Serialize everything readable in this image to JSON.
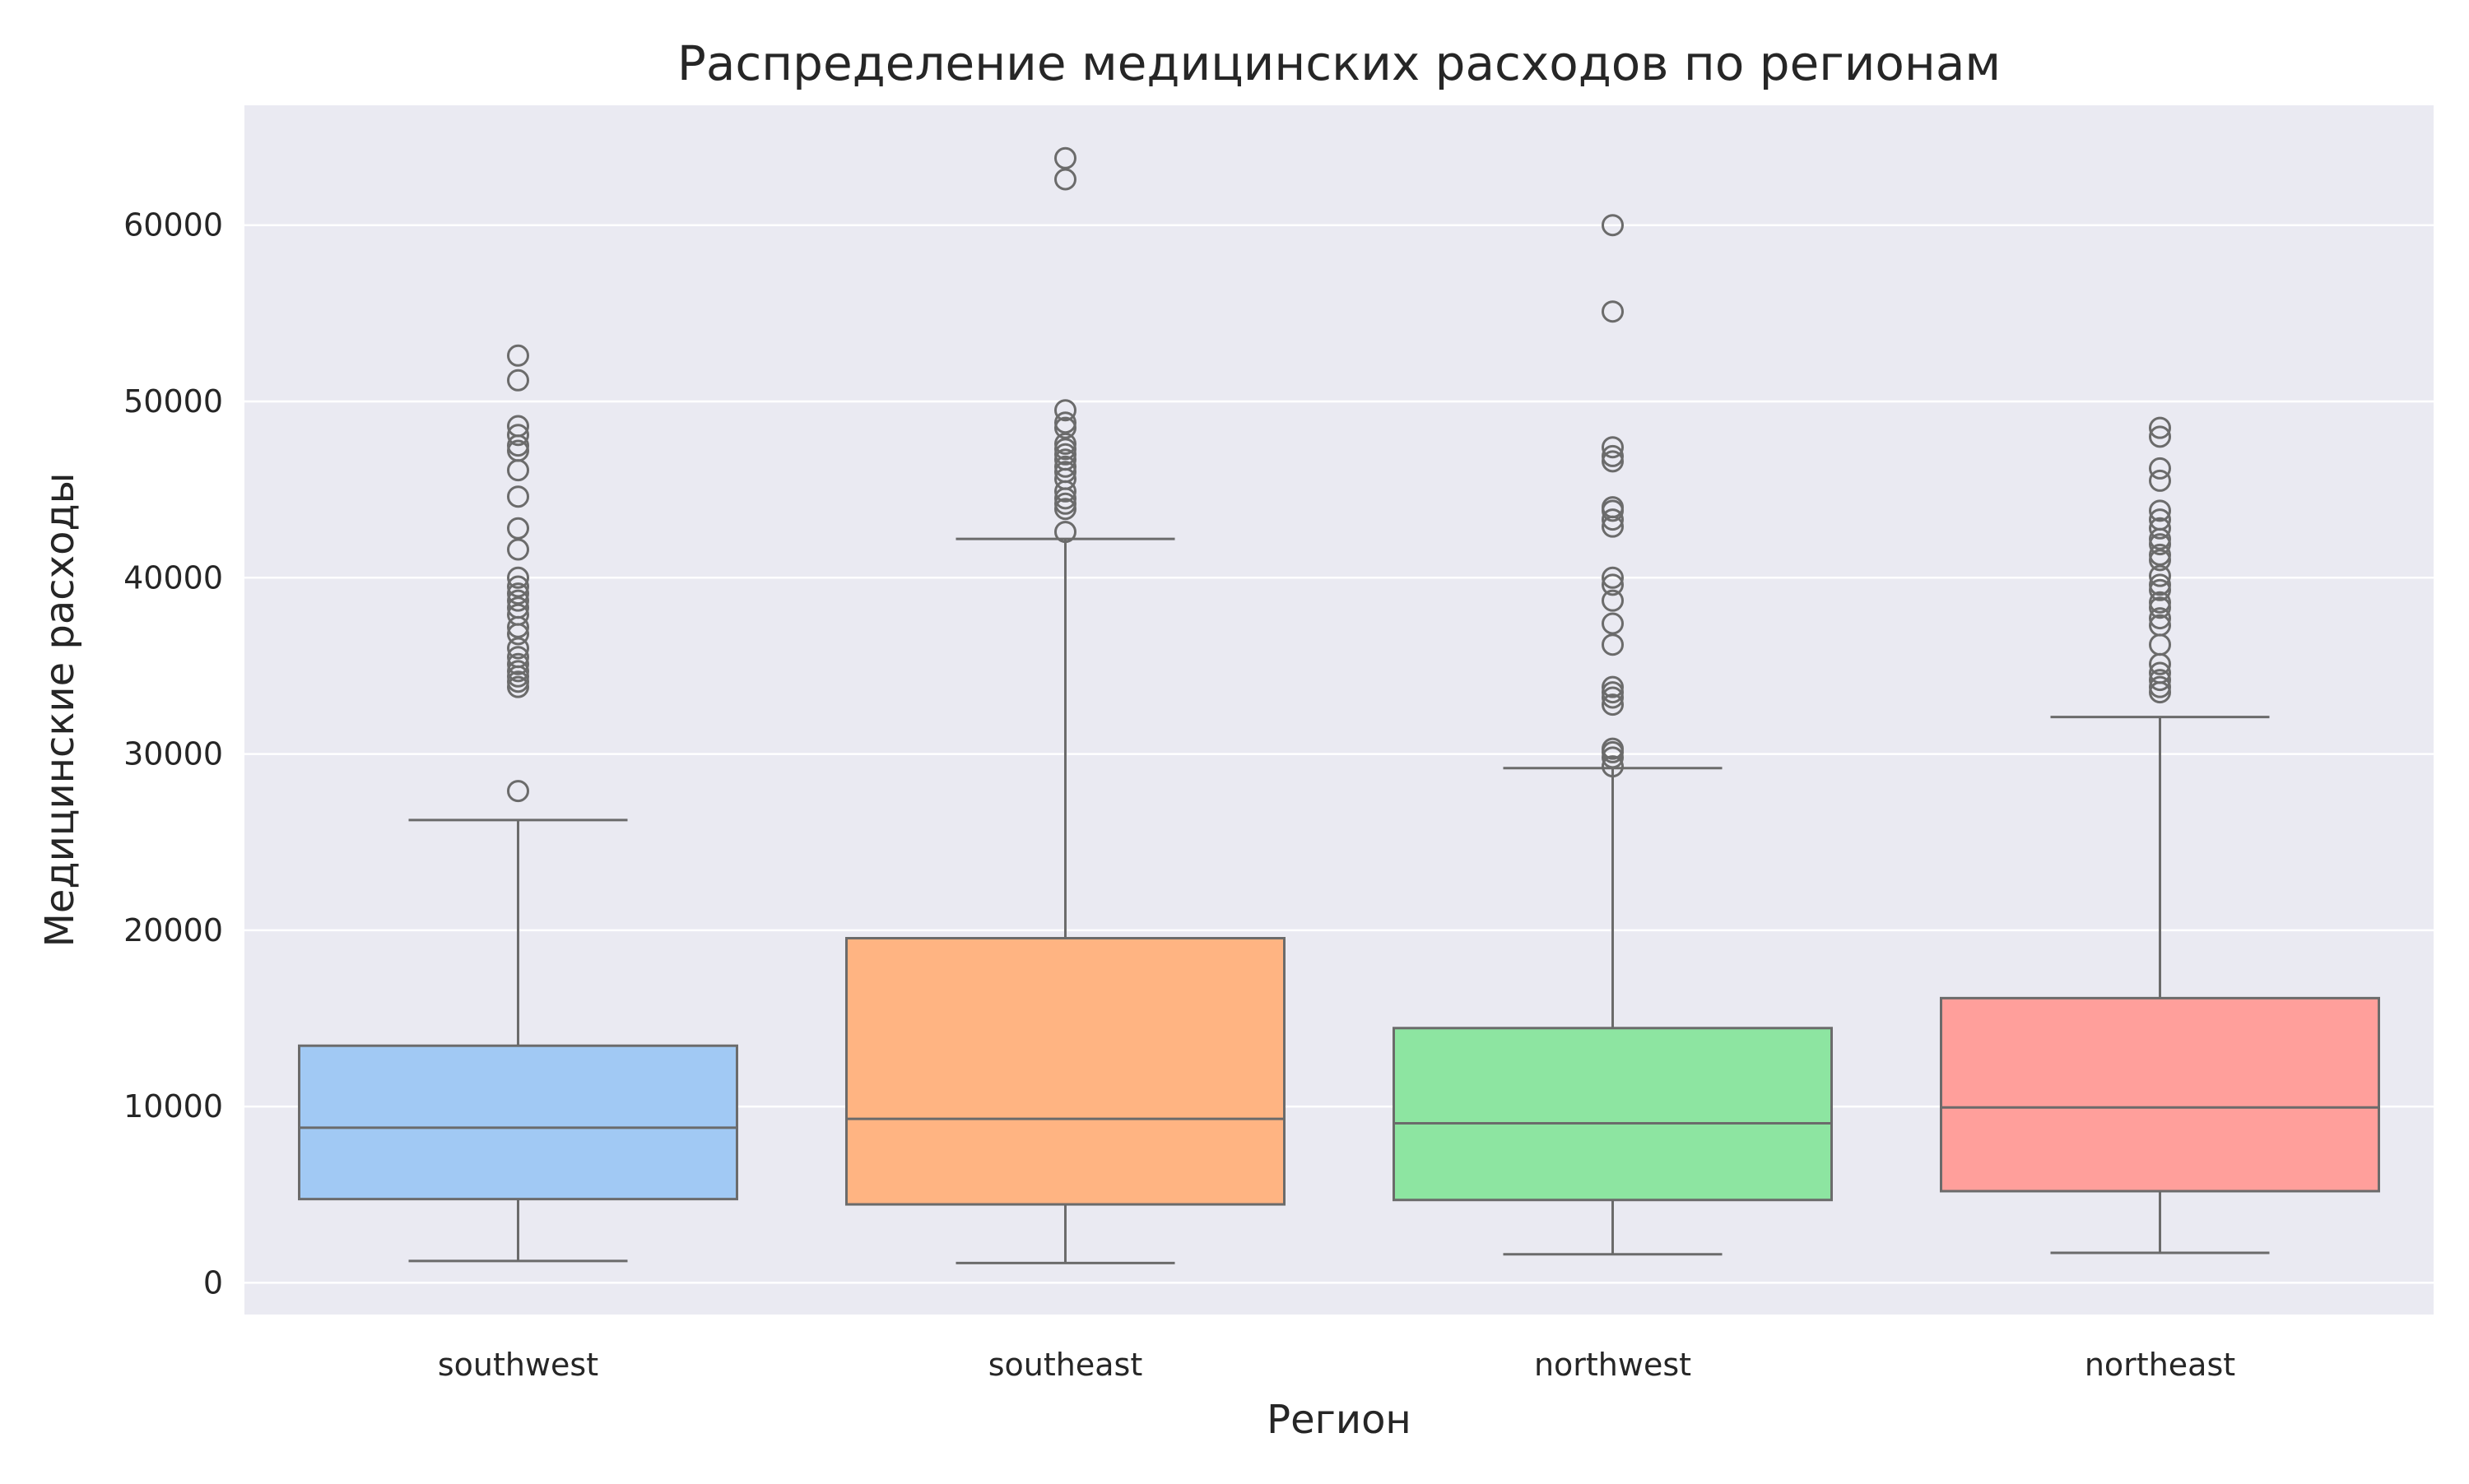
{
  "chart_data": {
    "type": "box",
    "title": "Распределение медицинских расходов по регионам",
    "xlabel": "Регион",
    "ylabel": "Медицинские расходы",
    "ylim": [
      -1800,
      66800
    ],
    "yticks": [
      0,
      10000,
      20000,
      30000,
      40000,
      50000,
      60000
    ],
    "ytick_labels": [
      "0",
      "10000",
      "20000",
      "30000",
      "40000",
      "50000",
      "60000"
    ],
    "grid": true,
    "legend": "none",
    "categories": [
      "southwest",
      "southeast",
      "northwest",
      "northeast"
    ],
    "colors": [
      "#a1c9f4",
      "#ffb482",
      "#8de5a1",
      "#ff9f9b"
    ],
    "boxes": [
      {
        "category": "southwest",
        "whisker_low": 1240,
        "q1": 4750,
        "median": 8800,
        "q3": 13450,
        "whisker_high": 26250,
        "outliers": [
          27900,
          33800,
          34100,
          34400,
          34700,
          35100,
          35500,
          36000,
          36800,
          37200,
          37900,
          38300,
          38700,
          39100,
          39500,
          40000,
          41600,
          42800,
          44600,
          46100,
          47200,
          47500,
          48100,
          48600,
          51200,
          52600
        ]
      },
      {
        "category": "southeast",
        "whisker_low": 1120,
        "q1": 4450,
        "median": 9300,
        "q3": 19550,
        "whisker_high": 42200,
        "outliers": [
          42600,
          43900,
          44200,
          44500,
          44900,
          45600,
          46000,
          46300,
          46700,
          47000,
          47300,
          47600,
          48500,
          48800,
          49500,
          62600,
          63800
        ]
      },
      {
        "category": "northwest",
        "whisker_low": 1620,
        "q1": 4700,
        "median": 9050,
        "q3": 14450,
        "whisker_high": 29200,
        "outliers": [
          29300,
          29800,
          30100,
          30300,
          32800,
          33200,
          33500,
          33800,
          36200,
          37400,
          38700,
          39600,
          40000,
          42900,
          43300,
          43800,
          44000,
          46600,
          46900,
          47400,
          55100,
          60000
        ]
      },
      {
        "category": "northeast",
        "whisker_low": 1700,
        "q1": 5200,
        "median": 9950,
        "q3": 16150,
        "whisker_high": 32100,
        "outliers": [
          33500,
          33800,
          34200,
          34600,
          35100,
          36200,
          37300,
          37700,
          38300,
          38600,
          39300,
          39600,
          40100,
          41000,
          41300,
          41900,
          42200,
          42800,
          43300,
          43800,
          45500,
          46200,
          48000,
          48500
        ]
      }
    ]
  }
}
